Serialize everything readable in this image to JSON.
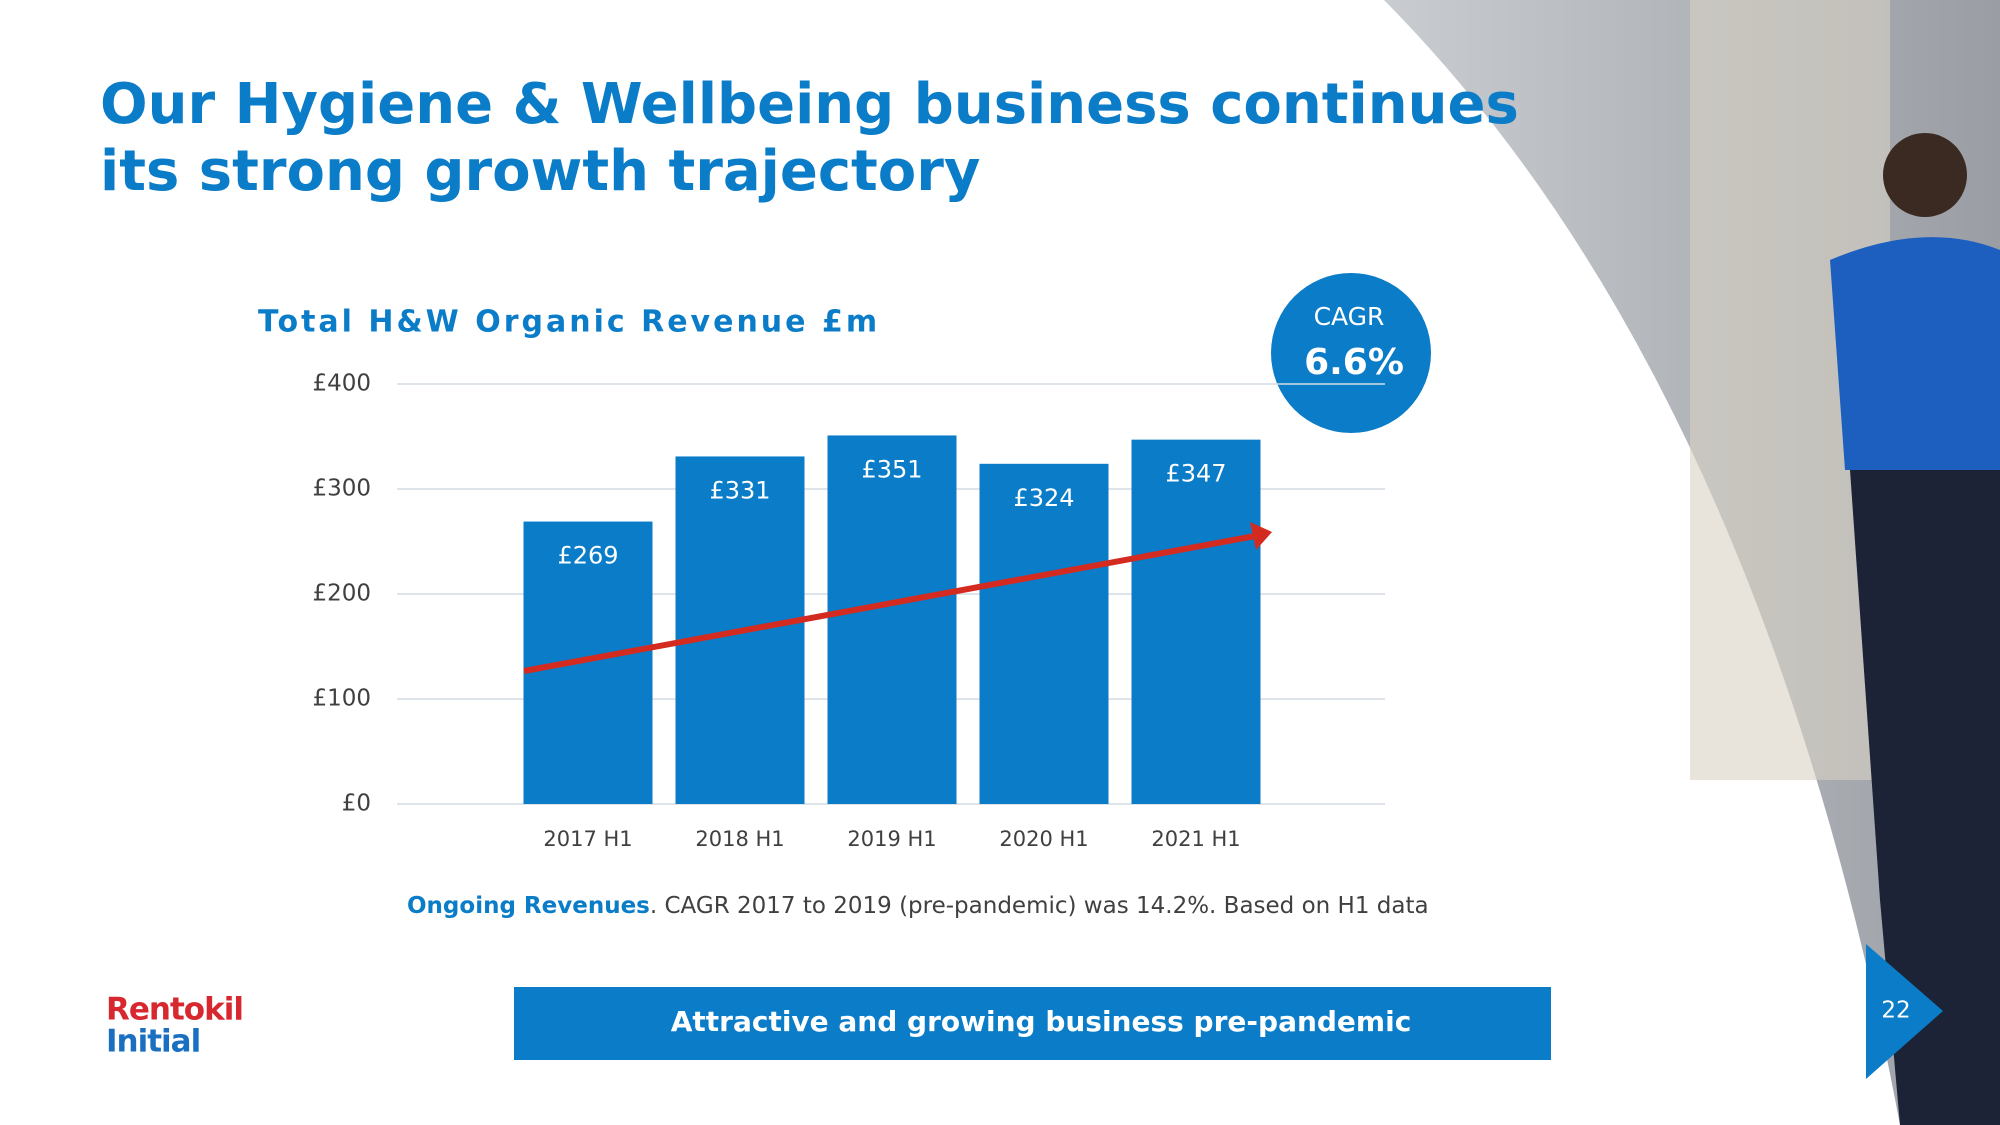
{
  "title": [
    "Our Hygiene & Wellbeing business continues",
    "its strong growth trajectory"
  ],
  "chart_data": {
    "type": "bar",
    "title": "Total H&W Organic Revenue  £m",
    "categories": [
      "2017 H1",
      "2018 H1",
      "2019 H1",
      "2020 H1",
      "2021 H1"
    ],
    "values": [
      269,
      331,
      351,
      324,
      347
    ],
    "value_labels": [
      "£269",
      "£331",
      "£351",
      "£324",
      "£347"
    ],
    "color": "#0a7cc8",
    "ylim": [
      0,
      400
    ],
    "yticks": [
      {
        "value": 0,
        "label": "£0"
      },
      {
        "value": 100,
        "label": "£100"
      },
      {
        "value": 200,
        "label": "£200"
      },
      {
        "value": 300,
        "label": "£300"
      },
      {
        "value": 400,
        "label": "£400"
      }
    ],
    "grid": true
  },
  "cagr": {
    "label": "CAGR",
    "value": "6.6%"
  },
  "footnote": {
    "highlight": "Ongoing Revenues",
    "text": ". CAGR 2017 to 2019 (pre-pandemic) was 14.2%. Based on H1 data"
  },
  "banner": "Attractive and growing business pre-pandemic",
  "logo": [
    "Rentokil",
    "Initial"
  ],
  "page_number": "22"
}
